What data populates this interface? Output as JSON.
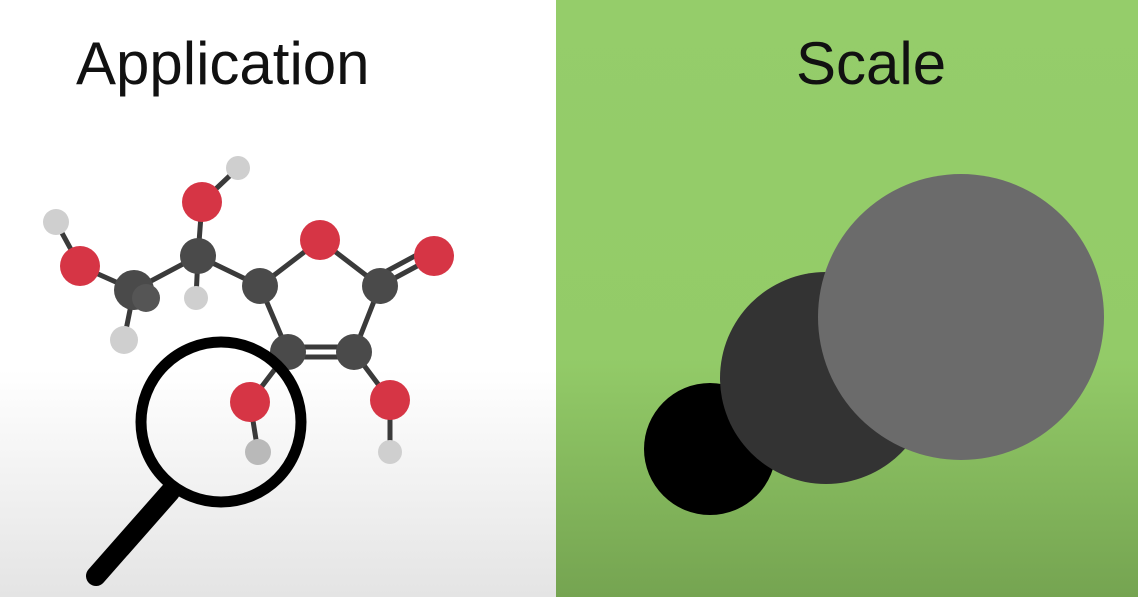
{
  "panels": {
    "left": {
      "title": "Application",
      "background": "#ffffff",
      "illustration": [
        "molecule-icon",
        "magnifying-glass-icon"
      ]
    },
    "right": {
      "title": "Scale",
      "background": "#95cd6a",
      "illustration": [
        "circles-of-increasing-size-icon"
      ]
    }
  },
  "colors": {
    "carbon": "#4a4a4a",
    "oxygen": "#d63545",
    "hydrogen": "#cfcfcf",
    "bond": "#3a3a3a",
    "circle_small": "#000000",
    "circle_medium": "#333333",
    "circle_large": "#6b6b6b"
  }
}
